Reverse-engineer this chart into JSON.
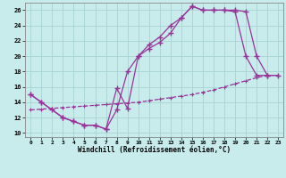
{
  "background_color": "#c8ecec",
  "grid_color": "#a8d4d4",
  "line_color": "#993399",
  "xlim": [
    -0.5,
    23.5
  ],
  "ylim": [
    9.5,
    27.0
  ],
  "xticks": [
    0,
    1,
    2,
    3,
    4,
    5,
    6,
    7,
    8,
    9,
    10,
    11,
    12,
    13,
    14,
    15,
    16,
    17,
    18,
    19,
    20,
    21,
    22,
    23
  ],
  "yticks": [
    10,
    12,
    14,
    16,
    18,
    20,
    22,
    24,
    26
  ],
  "xlabel": "Windchill (Refroidissement éolien,°C)",
  "line1_x": [
    0,
    1,
    3,
    4,
    5,
    6,
    7,
    8,
    9,
    10,
    11,
    12,
    13,
    14,
    15,
    16,
    17,
    18,
    19,
    20,
    21,
    22,
    23
  ],
  "line1_y": [
    15.0,
    14.0,
    12.0,
    11.5,
    11.0,
    11.0,
    10.5,
    15.8,
    13.2,
    20.0,
    21.0,
    21.8,
    23.0,
    25.0,
    26.5,
    26.0,
    26.0,
    26.0,
    26.0,
    25.8,
    20.0,
    17.5,
    17.5
  ],
  "line2_x": [
    0,
    1,
    2,
    3,
    4,
    5,
    6,
    7,
    8,
    9,
    10,
    11,
    12,
    13,
    14,
    15,
    16,
    17,
    18,
    19,
    20,
    21,
    22
  ],
  "line2_y": [
    15.0,
    14.0,
    13.0,
    12.0,
    11.5,
    11.0,
    11.0,
    10.5,
    13.0,
    18.0,
    20.0,
    21.5,
    22.5,
    24.0,
    25.0,
    26.5,
    26.0,
    26.0,
    26.0,
    25.8,
    20.0,
    17.5,
    17.5
  ],
  "line3_x": [
    0,
    1,
    2,
    3,
    4,
    5,
    6,
    7,
    8,
    9,
    10,
    11,
    12,
    13,
    14,
    15,
    16,
    17,
    18,
    19,
    20,
    21,
    22,
    23
  ],
  "line3_y": [
    13.0,
    13.1,
    13.2,
    13.3,
    13.4,
    13.5,
    13.6,
    13.7,
    13.8,
    13.9,
    14.0,
    14.2,
    14.4,
    14.6,
    14.8,
    15.0,
    15.3,
    15.6,
    16.0,
    16.4,
    16.8,
    17.2,
    17.5,
    17.5
  ]
}
